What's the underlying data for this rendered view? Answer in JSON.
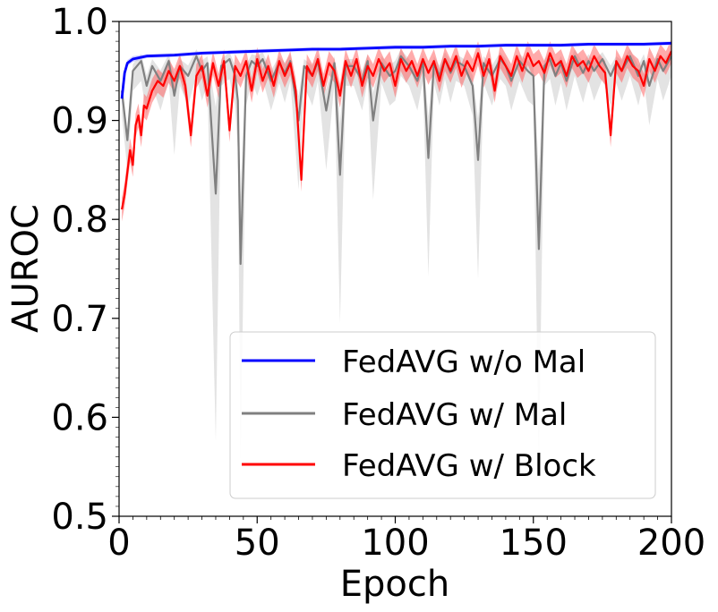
{
  "chart_data": {
    "type": "line",
    "title": "",
    "xlabel": "Epoch",
    "ylabel": "AUROC",
    "xlim": [
      0,
      200
    ],
    "ylim": [
      0.5,
      1.0
    ],
    "xticks": [
      0,
      50,
      100,
      150,
      200
    ],
    "xtick_labels": [
      "0",
      "50",
      "100",
      "150",
      "200"
    ],
    "yticks": [
      0.5,
      0.6,
      0.7,
      0.8,
      0.9,
      1.0
    ],
    "ytick_labels": [
      "0.5",
      "0.6",
      "0.7",
      "0.8",
      "0.9",
      "1.0"
    ],
    "grid": false,
    "legend_position": "lower-right",
    "series": [
      {
        "name": "FedAVG w/o Mal",
        "color": "#0000ff",
        "points": [
          [
            1,
            0.922
          ],
          [
            2,
            0.948
          ],
          [
            3,
            0.958
          ],
          [
            5,
            0.962
          ],
          [
            10,
            0.965
          ],
          [
            20,
            0.966
          ],
          [
            30,
            0.968
          ],
          [
            40,
            0.969
          ],
          [
            50,
            0.97
          ],
          [
            60,
            0.971
          ],
          [
            70,
            0.972
          ],
          [
            80,
            0.972
          ],
          [
            90,
            0.973
          ],
          [
            100,
            0.974
          ],
          [
            110,
            0.974
          ],
          [
            120,
            0.975
          ],
          [
            130,
            0.975
          ],
          [
            140,
            0.976
          ],
          [
            150,
            0.976
          ],
          [
            160,
            0.976
          ],
          [
            170,
            0.977
          ],
          [
            180,
            0.977
          ],
          [
            190,
            0.977
          ],
          [
            200,
            0.978
          ]
        ],
        "band": {
          "color": "#aaaaff",
          "lower": [
            0.915,
            0.944,
            0.955,
            0.959,
            0.963,
            0.964,
            0.966,
            0.967,
            0.968,
            0.969,
            0.97,
            0.97,
            0.971,
            0.972,
            0.972,
            0.973,
            0.973,
            0.974,
            0.974,
            0.974,
            0.975,
            0.975,
            0.975,
            0.976
          ],
          "upper": [
            0.928,
            0.952,
            0.961,
            0.965,
            0.967,
            0.968,
            0.97,
            0.971,
            0.972,
            0.973,
            0.974,
            0.974,
            0.975,
            0.976,
            0.976,
            0.977,
            0.977,
            0.978,
            0.978,
            0.978,
            0.979,
            0.979,
            0.979,
            0.98
          ]
        }
      },
      {
        "name": "FedAVG w/ Mal",
        "color": "#808080",
        "points": [
          [
            1,
            0.93
          ],
          [
            3,
            0.88
          ],
          [
            5,
            0.95
          ],
          [
            8,
            0.96
          ],
          [
            10,
            0.935
          ],
          [
            12,
            0.955
          ],
          [
            15,
            0.94
          ],
          [
            18,
            0.96
          ],
          [
            20,
            0.925
          ],
          [
            22,
            0.955
          ],
          [
            25,
            0.945
          ],
          [
            28,
            0.965
          ],
          [
            30,
            0.95
          ],
          [
            32,
            0.958
          ],
          [
            35,
            0.826
          ],
          [
            37,
            0.955
          ],
          [
            40,
            0.962
          ],
          [
            42,
            0.945
          ],
          [
            43,
            0.92
          ],
          [
            44,
            0.755
          ],
          [
            46,
            0.945
          ],
          [
            48,
            0.96
          ],
          [
            50,
            0.955
          ],
          [
            52,
            0.962
          ],
          [
            55,
            0.94
          ],
          [
            58,
            0.958
          ],
          [
            60,
            0.948
          ],
          [
            62,
            0.96
          ],
          [
            65,
            0.9
          ],
          [
            67,
            0.955
          ],
          [
            70,
            0.945
          ],
          [
            72,
            0.96
          ],
          [
            75,
            0.91
          ],
          [
            78,
            0.958
          ],
          [
            80,
            0.845
          ],
          [
            82,
            0.955
          ],
          [
            85,
            0.955
          ],
          [
            88,
            0.94
          ],
          [
            90,
            0.96
          ],
          [
            92,
            0.9
          ],
          [
            95,
            0.958
          ],
          [
            98,
            0.945
          ],
          [
            100,
            0.95
          ],
          [
            102,
            0.965
          ],
          [
            105,
            0.955
          ],
          [
            108,
            0.94
          ],
          [
            110,
            0.96
          ],
          [
            112,
            0.862
          ],
          [
            114,
            0.958
          ],
          [
            116,
            0.945
          ],
          [
            118,
            0.962
          ],
          [
            120,
            0.948
          ],
          [
            122,
            0.96
          ],
          [
            125,
            0.955
          ],
          [
            128,
            0.935
          ],
          [
            130,
            0.86
          ],
          [
            132,
            0.958
          ],
          [
            135,
            0.945
          ],
          [
            138,
            0.962
          ],
          [
            140,
            0.955
          ],
          [
            142,
            0.94
          ],
          [
            145,
            0.96
          ],
          [
            148,
            0.95
          ],
          [
            150,
            0.945
          ],
          [
            152,
            0.77
          ],
          [
            154,
            0.955
          ],
          [
            156,
            0.962
          ],
          [
            158,
            0.945
          ],
          [
            160,
            0.958
          ],
          [
            162,
            0.94
          ],
          [
            165,
            0.965
          ],
          [
            168,
            0.948
          ],
          [
            170,
            0.96
          ],
          [
            172,
            0.95
          ],
          [
            175,
            0.962
          ],
          [
            178,
            0.945
          ],
          [
            180,
            0.958
          ],
          [
            182,
            0.95
          ],
          [
            185,
            0.965
          ],
          [
            188,
            0.945
          ],
          [
            190,
            0.96
          ],
          [
            192,
            0.935
          ],
          [
            195,
            0.962
          ],
          [
            197,
            0.95
          ],
          [
            200,
            0.965
          ]
        ],
        "band": {
          "color": "#cccccc",
          "spread": [
            0.025,
            0.03,
            0.02,
            0.02,
            0.03,
            0.02,
            0.03,
            0.02,
            0.06,
            0.02,
            0.03,
            0.02,
            0.03,
            0.02,
            0.25,
            0.02,
            0.02,
            0.03,
            0.05,
            0.2,
            0.03,
            0.02,
            0.03,
            0.02,
            0.03,
            0.02,
            0.03,
            0.02,
            0.07,
            0.02,
            0.03,
            0.02,
            0.06,
            0.02,
            0.15,
            0.02,
            0.02,
            0.03,
            0.02,
            0.08,
            0.02,
            0.03,
            0.03,
            0.02,
            0.02,
            0.03,
            0.02,
            0.12,
            0.02,
            0.03,
            0.02,
            0.03,
            0.02,
            0.02,
            0.03,
            0.12,
            0.02,
            0.03,
            0.02,
            0.02,
            0.03,
            0.02,
            0.03,
            0.03,
            0.22,
            0.02,
            0.02,
            0.03,
            0.02,
            0.03,
            0.02,
            0.03,
            0.02,
            0.03,
            0.02,
            0.03,
            0.02,
            0.03,
            0.02,
            0.03,
            0.02,
            0.04,
            0.02,
            0.03,
            0.02
          ]
        }
      },
      {
        "name": "FedAVG w/ Block",
        "color": "#ff0000",
        "points": [
          [
            1,
            0.81
          ],
          [
            2,
            0.825
          ],
          [
            3,
            0.848
          ],
          [
            4,
            0.87
          ],
          [
            5,
            0.855
          ],
          [
            6,
            0.895
          ],
          [
            7,
            0.905
          ],
          [
            8,
            0.885
          ],
          [
            9,
            0.915
          ],
          [
            10,
            0.912
          ],
          [
            12,
            0.93
          ],
          [
            14,
            0.94
          ],
          [
            16,
            0.935
          ],
          [
            18,
            0.95
          ],
          [
            20,
            0.94
          ],
          [
            22,
            0.955
          ],
          [
            24,
            0.935
          ],
          [
            26,
            0.885
          ],
          [
            28,
            0.945
          ],
          [
            30,
            0.955
          ],
          [
            32,
            0.925
          ],
          [
            34,
            0.958
          ],
          [
            36,
            0.935
          ],
          [
            38,
            0.96
          ],
          [
            40,
            0.89
          ],
          [
            42,
            0.955
          ],
          [
            44,
            0.945
          ],
          [
            46,
            0.96
          ],
          [
            48,
            0.93
          ],
          [
            50,
            0.962
          ],
          [
            52,
            0.94
          ],
          [
            54,
            0.955
          ],
          [
            56,
            0.935
          ],
          [
            58,
            0.96
          ],
          [
            60,
            0.945
          ],
          [
            62,
            0.958
          ],
          [
            64,
            0.93
          ],
          [
            66,
            0.84
          ],
          [
            68,
            0.955
          ],
          [
            70,
            0.945
          ],
          [
            72,
            0.962
          ],
          [
            74,
            0.935
          ],
          [
            76,
            0.958
          ],
          [
            78,
            0.95
          ],
          [
            80,
            0.925
          ],
          [
            82,
            0.96
          ],
          [
            84,
            0.945
          ],
          [
            86,
            0.962
          ],
          [
            88,
            0.935
          ],
          [
            90,
            0.955
          ],
          [
            92,
            0.945
          ],
          [
            94,
            0.962
          ],
          [
            96,
            0.95
          ],
          [
            98,
            0.958
          ],
          [
            100,
            0.935
          ],
          [
            102,
            0.962
          ],
          [
            104,
            0.95
          ],
          [
            106,
            0.96
          ],
          [
            108,
            0.945
          ],
          [
            110,
            0.962
          ],
          [
            112,
            0.948
          ],
          [
            114,
            0.96
          ],
          [
            116,
            0.94
          ],
          [
            118,
            0.962
          ],
          [
            120,
            0.95
          ],
          [
            122,
            0.965
          ],
          [
            124,
            0.945
          ],
          [
            126,
            0.96
          ],
          [
            128,
            0.95
          ],
          [
            130,
            0.968
          ],
          [
            132,
            0.945
          ],
          [
            134,
            0.962
          ],
          [
            136,
            0.93
          ],
          [
            138,
            0.965
          ],
          [
            140,
            0.955
          ],
          [
            142,
            0.945
          ],
          [
            144,
            0.965
          ],
          [
            146,
            0.95
          ],
          [
            148,
            0.968
          ],
          [
            150,
            0.955
          ],
          [
            152,
            0.96
          ],
          [
            154,
            0.948
          ],
          [
            156,
            0.968
          ],
          [
            158,
            0.955
          ],
          [
            160,
            0.96
          ],
          [
            162,
            0.945
          ],
          [
            164,
            0.965
          ],
          [
            166,
            0.955
          ],
          [
            168,
            0.96
          ],
          [
            170,
            0.95
          ],
          [
            172,
            0.965
          ],
          [
            174,
            0.955
          ],
          [
            176,
            0.948
          ],
          [
            178,
            0.885
          ],
          [
            180,
            0.96
          ],
          [
            182,
            0.95
          ],
          [
            184,
            0.965
          ],
          [
            186,
            0.955
          ],
          [
            188,
            0.95
          ],
          [
            190,
            0.935
          ],
          [
            192,
            0.962
          ],
          [
            194,
            0.95
          ],
          [
            196,
            0.965
          ],
          [
            198,
            0.958
          ],
          [
            200,
            0.97
          ]
        ],
        "band": {
          "color": "#ff6666",
          "spread": 0.012
        }
      }
    ]
  }
}
